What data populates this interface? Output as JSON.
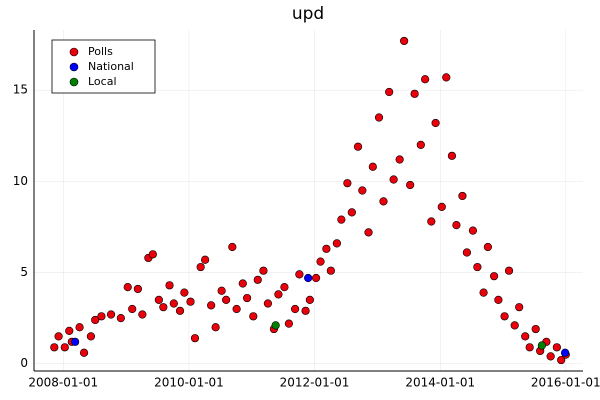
{
  "chart_data": {
    "type": "scatter",
    "title": "upd",
    "xlim": [
      "2007-07-15",
      "2016-04-10"
    ],
    "xticks": [
      "2008-01-01",
      "2010-01-01",
      "2012-01-01",
      "2014-01-01",
      "2016-01-01"
    ],
    "ylim": [
      -0.4,
      18.3
    ],
    "yticks": [
      0,
      5,
      10,
      15
    ],
    "grid": true,
    "legend": "top-left",
    "series": [
      {
        "name": "Polls",
        "color": "#e8000b",
        "x": [
          "2007-11-10",
          "2007-12-05",
          "2008-01-10",
          "2008-02-05",
          "2008-02-20",
          "2008-04-05",
          "2008-05-01",
          "2008-06-10",
          "2008-07-05",
          "2008-08-10",
          "2008-10-05",
          "2008-12-01",
          "2009-01-10",
          "2009-02-05",
          "2009-03-10",
          "2009-04-05",
          "2009-05-10",
          "2009-06-05",
          "2009-07-10",
          "2009-08-05",
          "2009-09-10",
          "2009-10-05",
          "2009-11-10",
          "2009-12-05",
          "2010-01-10",
          "2010-02-05",
          "2010-03-10",
          "2010-04-05",
          "2010-05-10",
          "2010-06-05",
          "2010-07-10",
          "2010-08-05",
          "2010-09-10",
          "2010-10-05",
          "2010-11-10",
          "2010-12-05",
          "2011-01-10",
          "2011-02-05",
          "2011-03-10",
          "2011-04-05",
          "2011-05-10",
          "2011-06-05",
          "2011-07-10",
          "2011-08-05",
          "2011-09-10",
          "2011-10-05",
          "2011-11-10",
          "2011-12-05",
          "2012-01-10",
          "2012-02-05",
          "2012-03-10",
          "2012-04-05",
          "2012-05-10",
          "2012-06-05",
          "2012-07-10",
          "2012-08-05",
          "2012-09-10",
          "2012-10-05",
          "2012-11-10",
          "2012-12-05",
          "2013-01-10",
          "2013-02-05",
          "2013-03-10",
          "2013-04-05",
          "2013-05-10",
          "2013-06-05",
          "2013-07-10",
          "2013-08-05",
          "2013-09-10",
          "2013-10-05",
          "2013-11-10",
          "2013-12-05",
          "2014-01-10",
          "2014-02-05",
          "2014-03-10",
          "2014-04-05",
          "2014-05-10",
          "2014-06-05",
          "2014-07-10",
          "2014-08-05",
          "2014-09-10",
          "2014-10-05",
          "2014-11-10",
          "2014-12-05",
          "2015-01-10",
          "2015-02-05",
          "2015-03-10",
          "2015-04-05",
          "2015-05-10",
          "2015-06-05",
          "2015-07-10",
          "2015-08-05",
          "2015-09-10",
          "2015-10-05",
          "2015-11-10",
          "2015-12-05",
          "2016-01-01"
        ],
        "values": [
          0.9,
          1.5,
          0.9,
          1.8,
          1.2,
          2.0,
          0.6,
          1.5,
          2.4,
          2.6,
          2.7,
          2.5,
          4.2,
          3.0,
          4.1,
          2.7,
          5.8,
          6.0,
          3.5,
          3.1,
          4.3,
          3.3,
          2.9,
          3.9,
          3.4,
          1.4,
          5.3,
          5.7,
          3.2,
          2.0,
          4.0,
          3.5,
          6.4,
          3.0,
          4.4,
          3.6,
          2.6,
          4.6,
          5.1,
          3.3,
          1.9,
          3.8,
          4.2,
          2.2,
          3.0,
          4.9,
          2.9,
          3.5,
          4.7,
          5.6,
          6.3,
          5.1,
          6.6,
          7.9,
          9.9,
          8.3,
          11.9,
          9.5,
          7.2,
          10.8,
          13.5,
          8.9,
          14.9,
          10.1,
          11.2,
          17.7,
          9.8,
          14.8,
          12.0,
          15.6,
          7.8,
          13.2,
          8.6,
          15.7,
          11.4,
          7.6,
          9.2,
          6.1,
          7.3,
          5.3,
          3.9,
          6.4,
          4.8,
          3.5,
          2.6,
          5.1,
          2.1,
          3.1,
          1.5,
          0.9,
          1.9,
          0.7,
          1.2,
          0.4,
          0.9,
          0.2,
          0.5
        ]
      },
      {
        "name": "National",
        "color": "#0000ff",
        "x": [
          "2008-03-10",
          "2011-11-25",
          "2015-12-28"
        ],
        "values": [
          1.2,
          4.7,
          0.6
        ]
      },
      {
        "name": "Local",
        "color": "#008000",
        "x": [
          "2011-05-20",
          "2015-08-15"
        ],
        "values": [
          2.1,
          1.0
        ]
      }
    ]
  }
}
